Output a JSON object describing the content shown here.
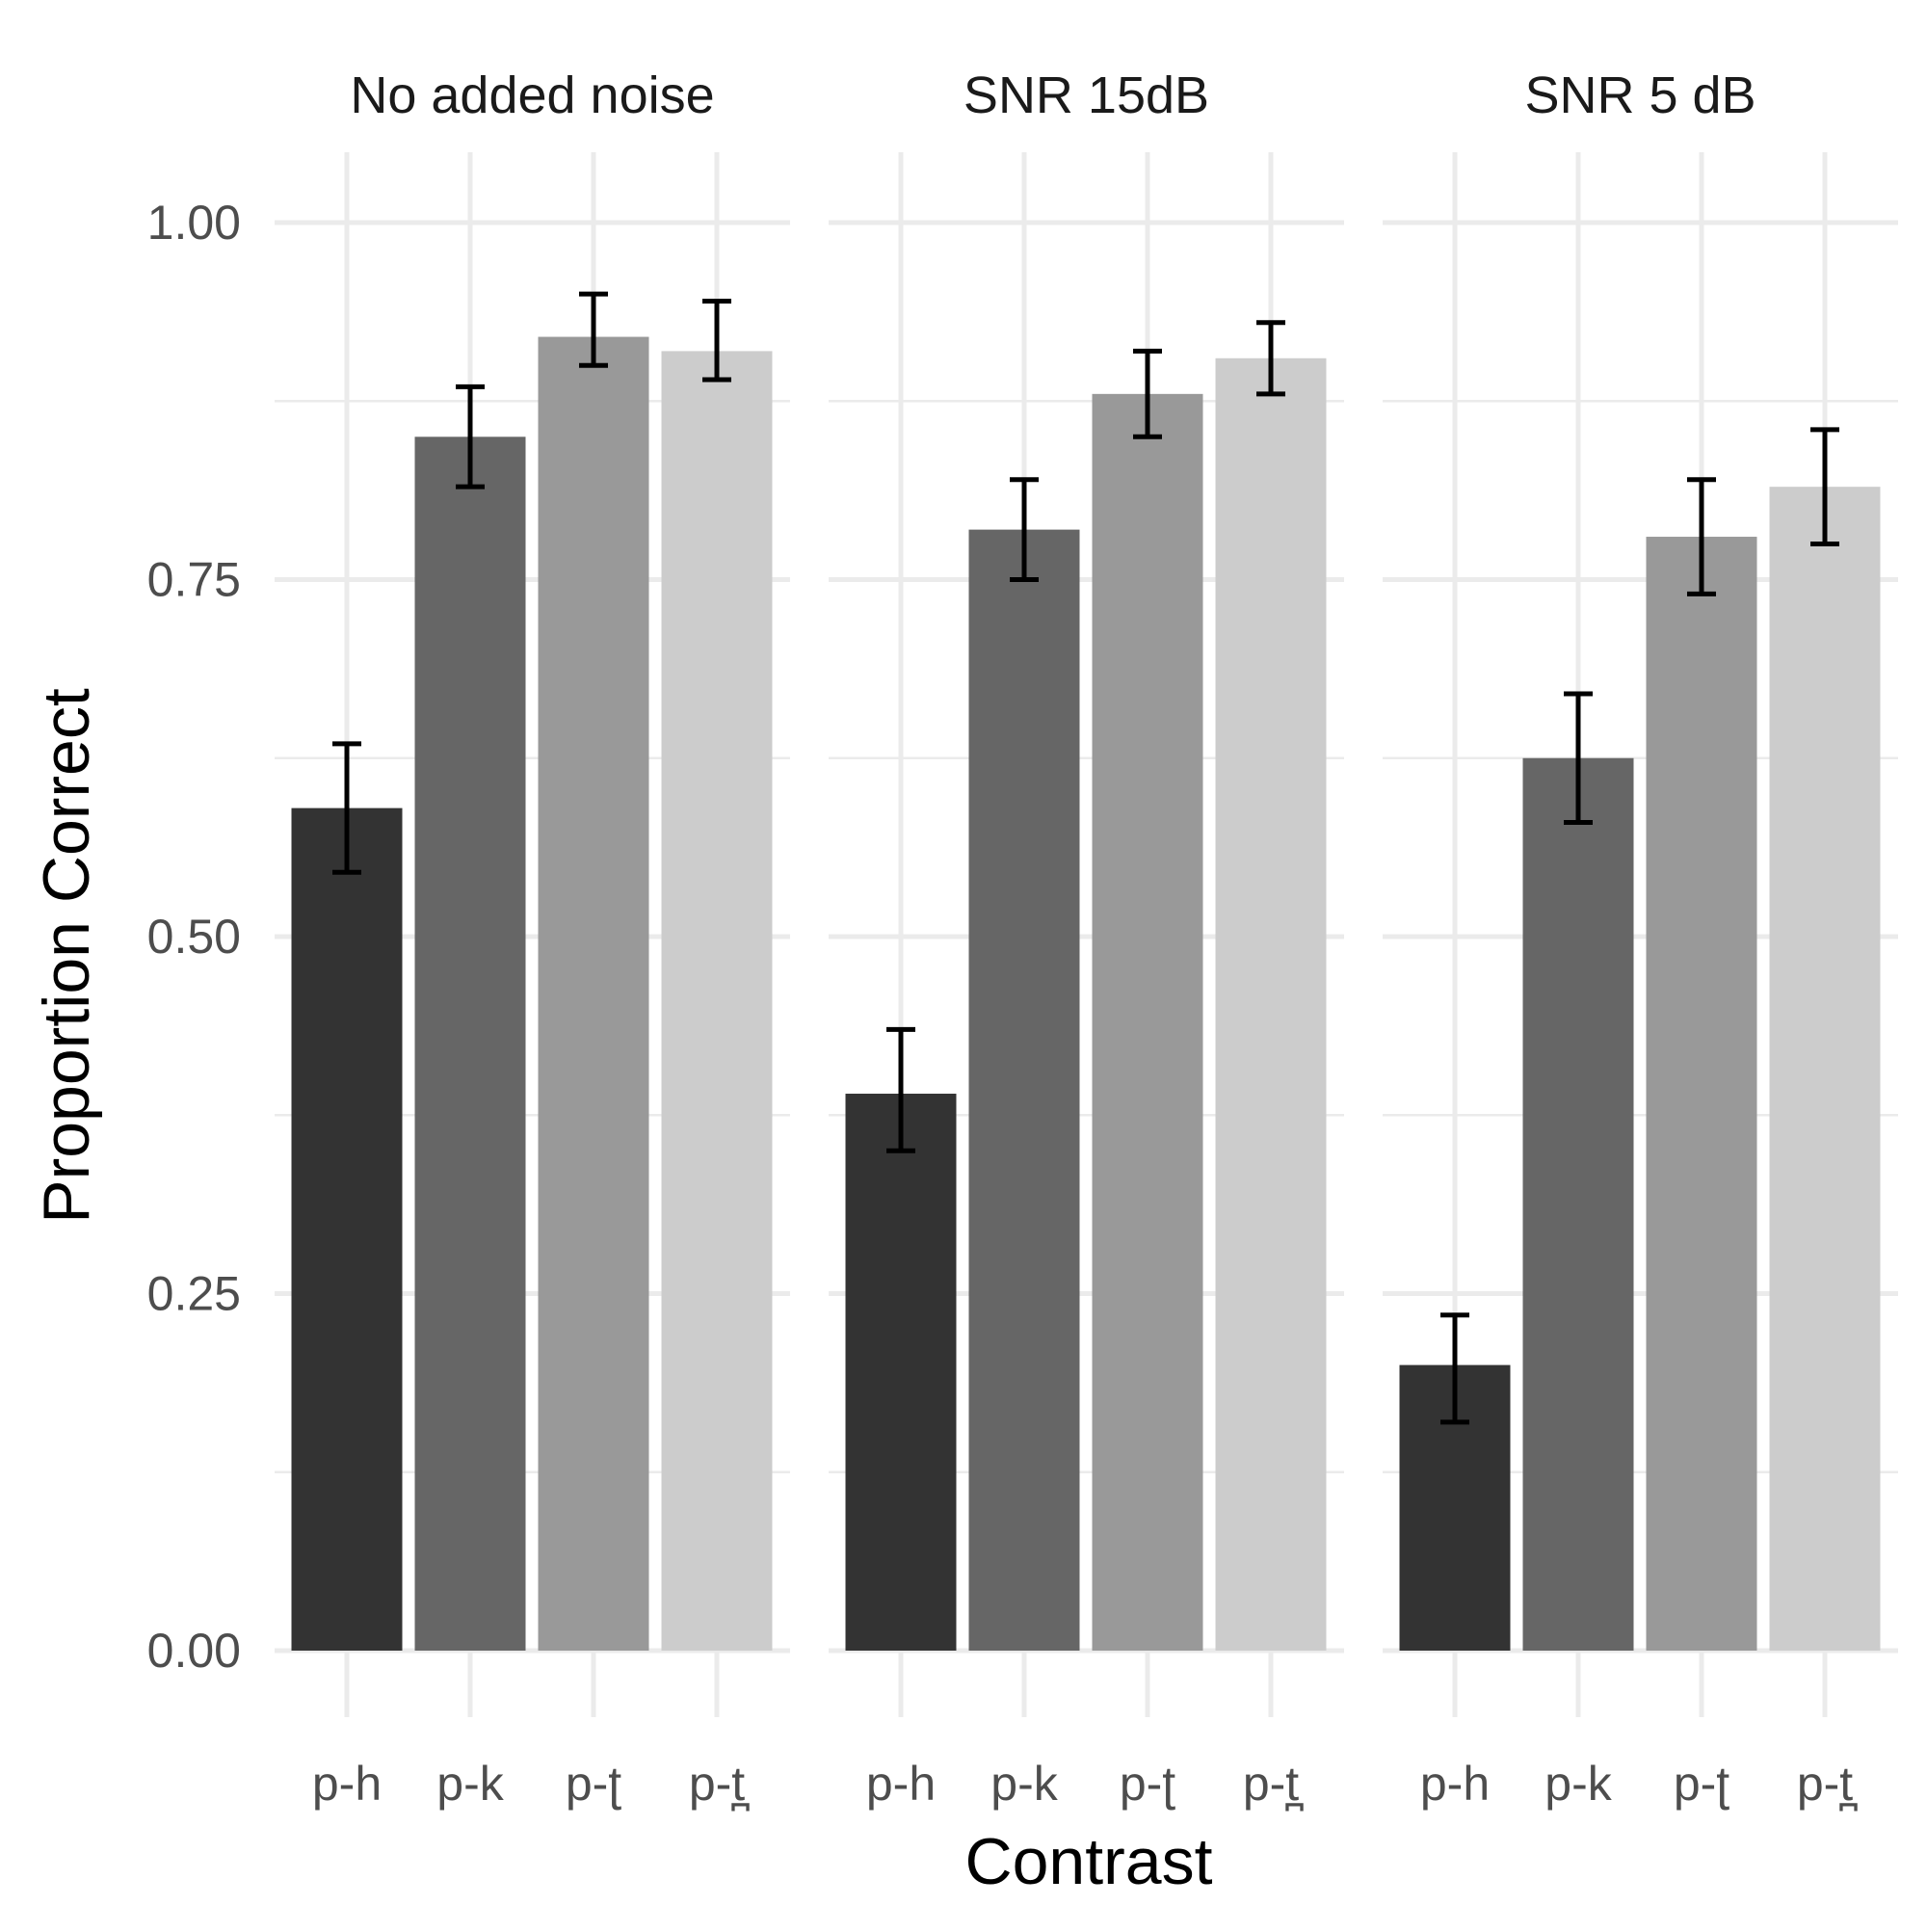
{
  "chart_data": {
    "type": "bar",
    "xlabel": "Contrast",
    "ylabel": "Proportion Correct",
    "ylim": [
      0,
      1.05
    ],
    "yticks": [
      "0.00",
      "0.25",
      "0.50",
      "0.75",
      "1.00"
    ],
    "categories": [
      "p-h",
      "p-k",
      "p-ʈ",
      "p-t̪"
    ],
    "bar_colors": [
      "#333333",
      "#666666",
      "#999999",
      "#cccccc"
    ],
    "grid": true,
    "legend": "none",
    "facets": [
      {
        "title": "No added noise",
        "values": [
          0.59,
          0.85,
          0.92,
          0.91
        ],
        "error_low": [
          0.545,
          0.815,
          0.9,
          0.89
        ],
        "error_high": [
          0.635,
          0.885,
          0.95,
          0.945
        ]
      },
      {
        "title": "SNR 15dB",
        "values": [
          0.39,
          0.785,
          0.88,
          0.905
        ],
        "error_low": [
          0.35,
          0.75,
          0.85,
          0.88
        ],
        "error_high": [
          0.435,
          0.82,
          0.91,
          0.93
        ]
      },
      {
        "title": "SNR 5 dB",
        "values": [
          0.2,
          0.625,
          0.78,
          0.815
        ],
        "error_low": [
          0.16,
          0.58,
          0.74,
          0.775
        ],
        "error_high": [
          0.235,
          0.67,
          0.82,
          0.855
        ]
      }
    ]
  }
}
